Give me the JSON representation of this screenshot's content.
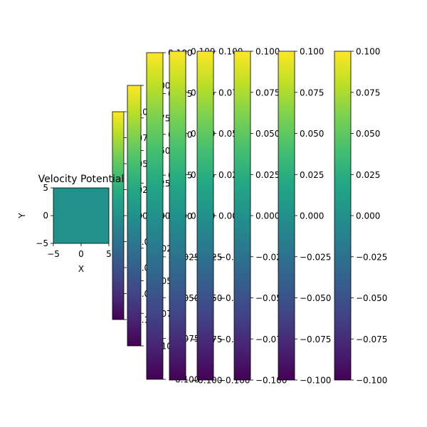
{
  "chart_data": {
    "type": "heatmap",
    "title": "Velocity Potential",
    "xlabel": "X",
    "ylabel": "Y",
    "xlim": [
      -5,
      5
    ],
    "ylim": [
      -5,
      5
    ],
    "x_ticks": [
      "−5",
      "0",
      "5"
    ],
    "y_ticks": [
      "−5",
      "0",
      "5"
    ],
    "field_value": 0.0,
    "colormap": "viridis",
    "colorbar_range": [
      -0.1,
      0.1
    ],
    "colorbar_count": 8,
    "colorbar_ticks": [
      "0.100",
      "0.075",
      "0.050",
      "0.025",
      "0.000",
      "−0.025",
      "−0.050",
      "−0.075",
      "−0.100"
    ],
    "colorbar_tick_values": [
      0.1,
      0.075,
      0.05,
      0.025,
      0.0,
      -0.025,
      -0.05,
      -0.075,
      -0.1
    ]
  }
}
